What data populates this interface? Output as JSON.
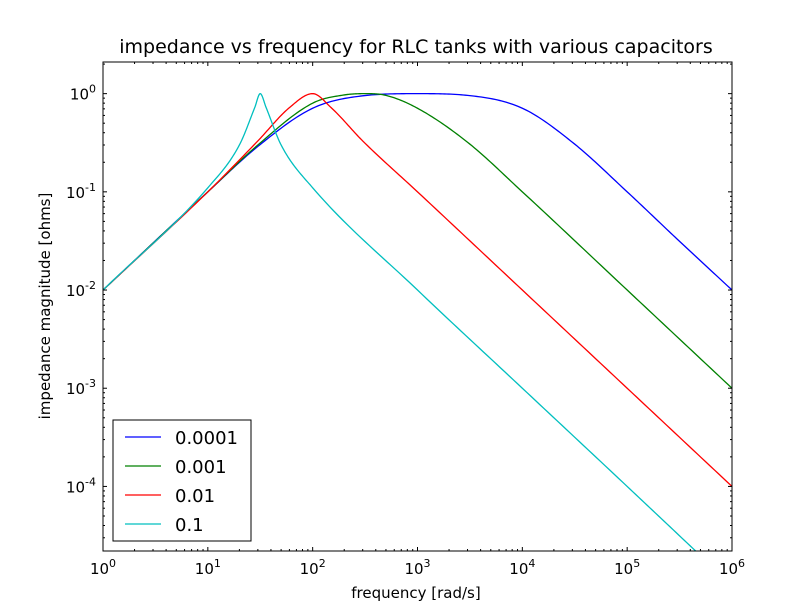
{
  "chart_data": {
    "type": "line",
    "title": "impedance vs frequency for RLC tanks with various capacitors",
    "xlabel": "frequency [rad/s]",
    "ylabel": "impedance magnitude [ohms]",
    "x_scale": "log",
    "y_scale": "log",
    "xlim": [
      1,
      1000000
    ],
    "ylim": [
      2.2e-05,
      2.1
    ],
    "grid": false,
    "legend_position": "lower-left",
    "x_ticks": [
      {
        "base": "10",
        "exp": "0",
        "value": 1
      },
      {
        "base": "10",
        "exp": "1",
        "value": 10
      },
      {
        "base": "10",
        "exp": "2",
        "value": 100
      },
      {
        "base": "10",
        "exp": "3",
        "value": 1000
      },
      {
        "base": "10",
        "exp": "4",
        "value": 10000
      },
      {
        "base": "10",
        "exp": "5",
        "value": 100000
      },
      {
        "base": "10",
        "exp": "6",
        "value": 1000000
      }
    ],
    "y_ticks": [
      {
        "base": "10",
        "exp": "-4",
        "value": 0.0001
      },
      {
        "base": "10",
        "exp": "-3",
        "value": 0.001
      },
      {
        "base": "10",
        "exp": "-2",
        "value": 0.01
      },
      {
        "base": "10",
        "exp": "-1",
        "value": 0.1
      },
      {
        "base": "10",
        "exp": "0",
        "value": 1
      }
    ],
    "series": [
      {
        "name": "0.0001",
        "color": "#0000ff",
        "x": [
          1,
          10,
          30,
          100,
          300,
          1000,
          3000,
          10000,
          30000,
          100000,
          300000,
          1000000
        ],
        "y": [
          0.01,
          0.1,
          0.29,
          0.71,
          0.95,
          1.0,
          0.96,
          0.71,
          0.32,
          0.1,
          0.033,
          0.01
        ]
      },
      {
        "name": "0.001",
        "color": "#008000",
        "x": [
          1,
          10,
          30,
          100,
          200,
          316,
          500,
          1000,
          3000,
          10000,
          100000,
          1000000
        ],
        "y": [
          0.01,
          0.1,
          0.3,
          0.8,
          0.97,
          1.0,
          0.96,
          0.71,
          0.32,
          0.1,
          0.01,
          0.001
        ]
      },
      {
        "name": "0.01",
        "color": "#ff0000",
        "x": [
          1,
          10,
          30,
          60,
          100,
          150,
          300,
          1000,
          10000,
          100000,
          1000000
        ],
        "y": [
          0.01,
          0.1,
          0.33,
          0.72,
          1.0,
          0.72,
          0.33,
          0.1,
          0.01,
          0.001,
          0.0001
        ]
      },
      {
        "name": "0.1",
        "color": "#00bfbf",
        "x": [
          1,
          10,
          20,
          28,
          31.6,
          36,
          50,
          100,
          1000,
          10000,
          100000,
          450000
        ],
        "y": [
          0.01,
          0.11,
          0.3,
          0.72,
          1.0,
          0.72,
          0.3,
          0.11,
          0.01,
          0.001,
          0.0001,
          2.2e-05
        ]
      }
    ]
  }
}
